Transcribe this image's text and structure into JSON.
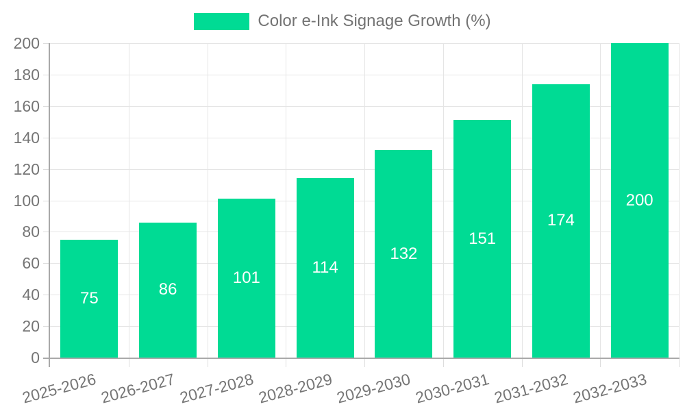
{
  "legend": {
    "label": "Color e-Ink Signage Growth (%)"
  },
  "chart_data": {
    "type": "bar",
    "title": "Color e-Ink Signage Growth (%)",
    "categories": [
      "2025-2026",
      "2026-2027",
      "2027-2028",
      "2028-2029",
      "2029-2030",
      "2030-2031",
      "2031-2032",
      "2032-2033"
    ],
    "values": [
      75,
      86,
      101,
      114,
      132,
      151,
      174,
      200
    ],
    "series_name": "Color e-Ink Signage Growth (%)",
    "xlabel": "",
    "ylabel": "",
    "ylim": [
      0,
      200
    ],
    "ytick_step": 20,
    "ytick_labels": [
      "0",
      "20",
      "40",
      "60",
      "80",
      "100",
      "120",
      "140",
      "160",
      "180",
      "200"
    ],
    "grid": true,
    "legend_position": "top-center",
    "value_labels": "inside-center"
  },
  "colors": {
    "bar": "#00DB94",
    "bar_value_text": "#ffffff",
    "gridline": "#e5e5e5",
    "tick_mark": "#dddddd",
    "axis_line": "#a9a9a9",
    "tick_text": "#757575",
    "legend_text": "#737373",
    "background": "#ffffff"
  }
}
